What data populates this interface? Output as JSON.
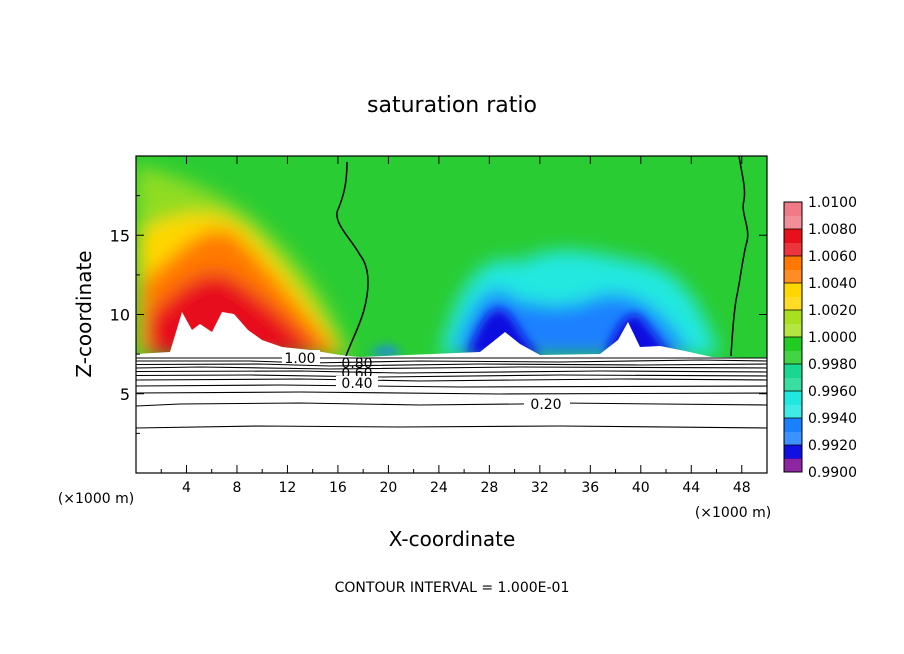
{
  "chart_data": {
    "type": "heatmap",
    "title": "saturation ratio",
    "xlabel": "X-coordinate",
    "ylabel": "Z-coordinate",
    "x_units": "(×1000 m)",
    "x_units_right": "(×1000 m)",
    "xlim": [
      0,
      50
    ],
    "ylim": [
      0,
      20
    ],
    "x_ticks": [
      "4",
      "8",
      "12",
      "16",
      "20",
      "24",
      "28",
      "32",
      "36",
      "40",
      "44",
      "48"
    ],
    "y_ticks": [
      "5",
      "10",
      "15"
    ],
    "colorbar": {
      "range": [
        0.99,
        1.01
      ],
      "labels": [
        "1.0100",
        "1.0080",
        "1.0060",
        "1.0040",
        "1.0020",
        "1.0000",
        "0.9980",
        "0.9960",
        "0.9940",
        "0.9920",
        "0.9900"
      ],
      "colors": [
        "#f07a86",
        "#e8101a",
        "#ff7800",
        "#ffd700",
        "#8fdc20",
        "#22cc22",
        "#18d890",
        "#20e8e0",
        "#1a80ff",
        "#1010e0",
        "#7a0090"
      ]
    },
    "contour_labels": [
      "1.00",
      "0.80",
      "0.60",
      "0.40",
      "0.20"
    ],
    "contour_interval_label": "CONTOUR INTERVAL = 1.000E-01"
  }
}
